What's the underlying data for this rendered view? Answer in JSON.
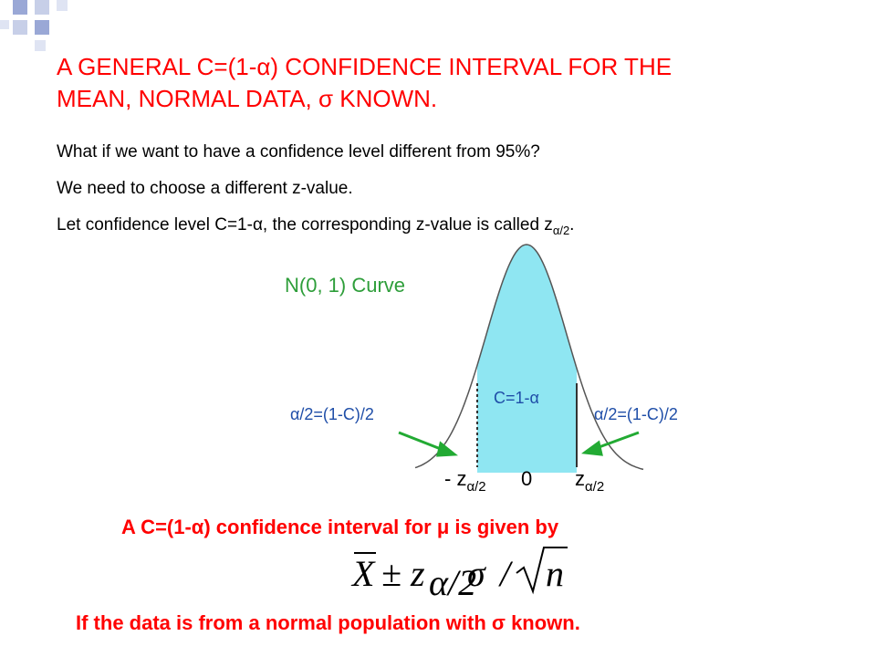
{
  "title_lines": [
    "A GENERAL C=(1-α) CONFIDENCE INTERVAL FOR THE",
    "MEAN, NORMAL DATA, σ KNOWN."
  ],
  "bullets": [
    "What if we want to have a confidence level different from 95%?",
    "We need to choose a different z-value.",
    {
      "text": "Let confidence level C=1-α, the corresponding z-value is called z",
      "sub": "α/2",
      "end": "."
    }
  ],
  "figure": {
    "curve_label": "N(0, 1) Curve",
    "center_label": "C=1-α",
    "left_tail_label": "α/2=(1-C)/2",
    "right_tail_label": "α/2=(1-C)/2",
    "left_z": {
      "text": "- z",
      "sub": "α/2"
    },
    "zero": "0",
    "right_z": {
      "text": "z",
      "sub": "α/2"
    }
  },
  "statement": "A C=(1-α) confidence interval for μ is given by",
  "formula": {
    "mean": "X",
    "pm": "±",
    "z": "z",
    "sub": "α/2",
    "sigma": "σ",
    "slash": "/",
    "n": "n"
  },
  "condition": "If the data is from a normal population with σ known."
}
